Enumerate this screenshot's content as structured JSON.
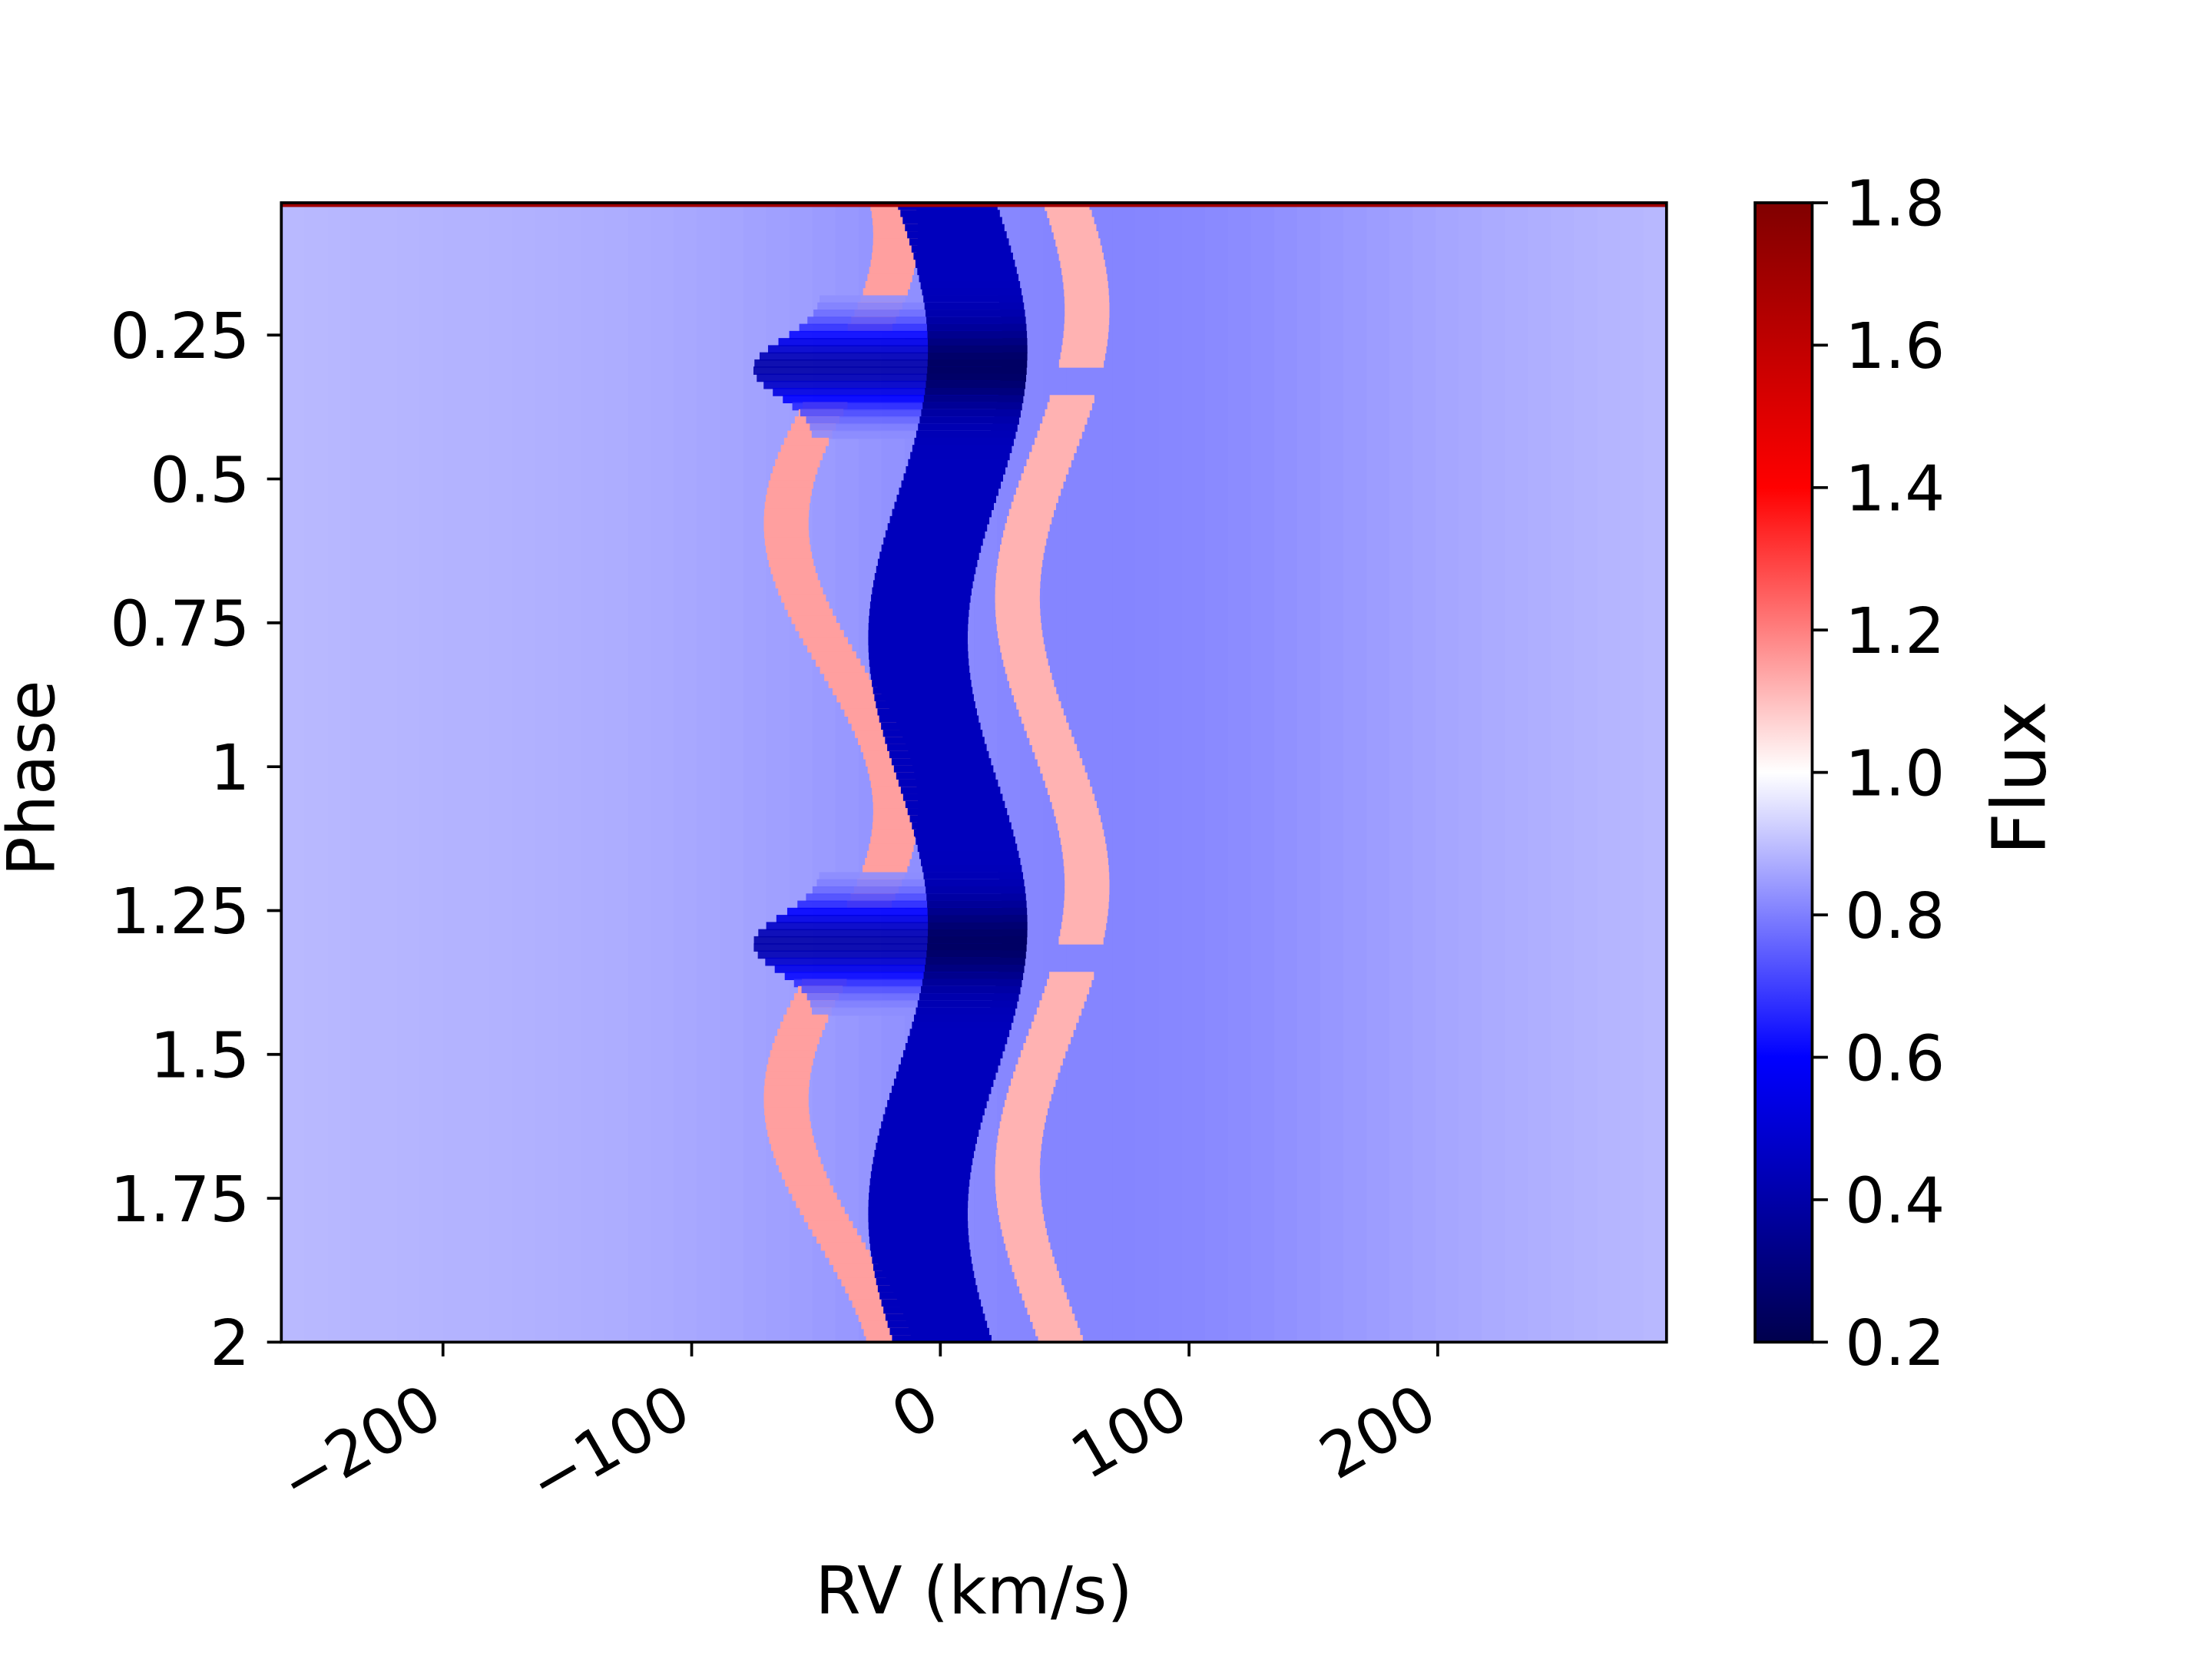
{
  "chart_data": {
    "type": "heatmap",
    "title": "",
    "xlabel": "RV (km/s)",
    "ylabel": "Phase",
    "xlim": [
      -265,
      292
    ],
    "ylim": [
      2.0,
      0.02
    ],
    "y_inverted": true,
    "x_ticks": [
      -200,
      -100,
      0,
      100,
      200
    ],
    "x_tick_labels": [
      "−200",
      "−100",
      "0",
      "100",
      "200"
    ],
    "x_tick_rotation_deg": 30,
    "y_ticks": [
      0.25,
      0.5,
      0.75,
      1.0,
      1.25,
      1.5,
      1.75,
      2.0
    ],
    "y_tick_labels": [
      "0.25",
      "0.5",
      "0.75",
      "1",
      "1.25",
      "1.5",
      "1.75",
      "2"
    ],
    "colorbar": {
      "label": "Flux",
      "colormap": "seismic",
      "vmin": 0.2,
      "vmax": 1.8,
      "ticks": [
        0.2,
        0.4,
        0.6,
        0.8,
        1.0,
        1.2,
        1.4,
        1.6,
        1.8
      ],
      "tick_labels": [
        "0.2",
        "0.4",
        "0.6",
        "0.8",
        "1.0",
        "1.2",
        "1.4",
        "1.6",
        "1.8"
      ]
    },
    "features": [
      {
        "feature": "continuum",
        "flux": 0.85
      },
      {
        "feature": "central absorption trough",
        "flux": 0.45,
        "rv_center_range_km_s": [
          -5,
          12
        ],
        "rv_width_km_s": 40
      },
      {
        "feature": "deep absorption core near phase 0.3 and 1.3",
        "flux": 0.25
      },
      {
        "feature": "blue-side emission arc",
        "flux": 1.15,
        "rv_range_km_s": [
          -55,
          -5
        ]
      },
      {
        "feature": "red-side emission arc",
        "flux": 1.12,
        "rv_range_km_s": [
          30,
          65
        ]
      }
    ]
  }
}
